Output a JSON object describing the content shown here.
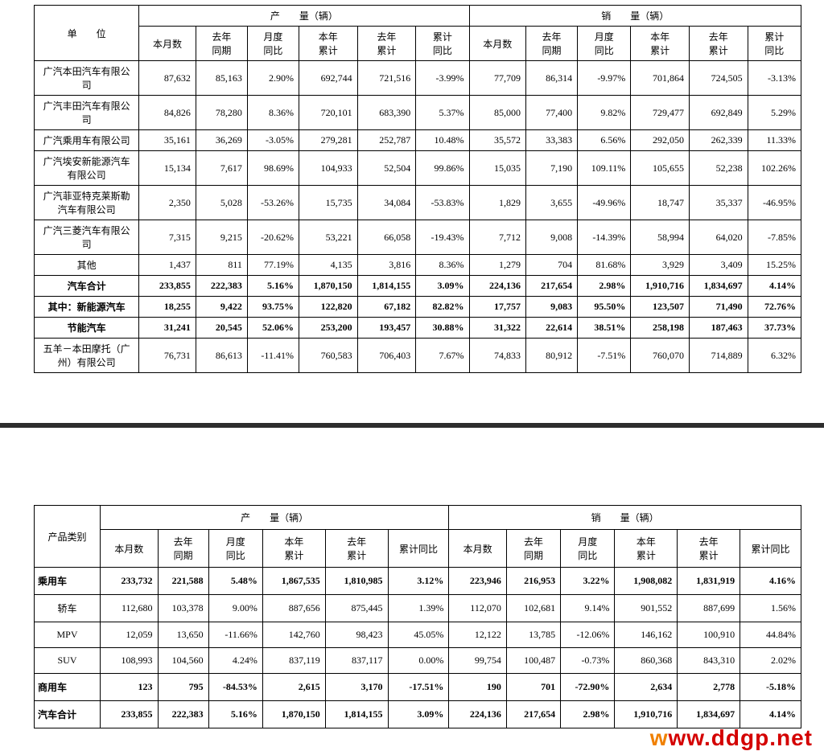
{
  "table1": {
    "group_header_unit": "单　　位",
    "group_header_prod": "产　　量（辆）",
    "group_header_sales": "销　　量（辆）",
    "cols": [
      "本月数",
      "去年\n同期",
      "月度\n同比",
      "本年\n累计",
      "去年\n累计",
      "累计\n同比",
      "本月数",
      "去年\n同期",
      "月度\n同比",
      "本年\n累计",
      "去年\n累计",
      "累计\n同比"
    ],
    "col_widths": [
      "122px",
      "66px",
      "60px",
      "60px",
      "68px",
      "68px",
      "62px",
      "66px",
      "60px",
      "62px",
      "68px",
      "68px",
      "62px"
    ],
    "rows": [
      {
        "unit": "广汽本田汽车有限公司",
        "v": [
          "87,632",
          "85,163",
          "2.90%",
          "692,744",
          "721,516",
          "-3.99%",
          "77,709",
          "86,314",
          "-9.97%",
          "701,864",
          "724,505",
          "-3.13%"
        ]
      },
      {
        "unit": "广汽丰田汽车有限公司",
        "v": [
          "84,826",
          "78,280",
          "8.36%",
          "720,101",
          "683,390",
          "5.37%",
          "85,000",
          "77,400",
          "9.82%",
          "729,477",
          "692,849",
          "5.29%"
        ]
      },
      {
        "unit": "广汽乘用车有限公司",
        "v": [
          "35,161",
          "36,269",
          "-3.05%",
          "279,281",
          "252,787",
          "10.48%",
          "35,572",
          "33,383",
          "6.56%",
          "292,050",
          "262,339",
          "11.33%"
        ]
      },
      {
        "unit": "广汽埃安新能源汽车有限公司",
        "v": [
          "15,134",
          "7,617",
          "98.69%",
          "104,933",
          "52,504",
          "99.86%",
          "15,035",
          "7,190",
          "109.11%",
          "105,655",
          "52,238",
          "102.26%"
        ]
      },
      {
        "unit": "广汽菲亚特克莱斯勒汽车有限公司",
        "v": [
          "2,350",
          "5,028",
          "-53.26%",
          "15,735",
          "34,084",
          "-53.83%",
          "1,829",
          "3,655",
          "-49.96%",
          "18,747",
          "35,337",
          "-46.95%"
        ]
      },
      {
        "unit": "广汽三菱汽车有限公司",
        "v": [
          "7,315",
          "9,215",
          "-20.62%",
          "53,221",
          "66,058",
          "-19.43%",
          "7,712",
          "9,008",
          "-14.39%",
          "58,994",
          "64,020",
          "-7.85%"
        ]
      },
      {
        "unit": "其他",
        "v": [
          "1,437",
          "811",
          "77.19%",
          "4,135",
          "3,816",
          "8.36%",
          "1,279",
          "704",
          "81.68%",
          "3,929",
          "3,409",
          "15.25%"
        ]
      },
      {
        "unit": "汽车合计",
        "bold": true,
        "v": [
          "233,855",
          "222,383",
          "5.16%",
          "1,870,150",
          "1,814,155",
          "3.09%",
          "224,136",
          "217,654",
          "2.98%",
          "1,910,716",
          "1,834,697",
          "4.14%"
        ]
      },
      {
        "unit": "其中：新能源汽车",
        "bold": true,
        "v": [
          "18,255",
          "9,422",
          "93.75%",
          "122,820",
          "67,182",
          "82.82%",
          "17,757",
          "9,083",
          "95.50%",
          "123,507",
          "71,490",
          "72.76%"
        ]
      },
      {
        "unit": "节能汽车",
        "bold": true,
        "v": [
          "31,241",
          "20,545",
          "52.06%",
          "253,200",
          "193,457",
          "30.88%",
          "31,322",
          "22,614",
          "38.51%",
          "258,198",
          "187,463",
          "37.73%"
        ]
      },
      {
        "unit": "五羊－本田摩托（广州）有限公司",
        "v": [
          "76,731",
          "86,613",
          "-11.41%",
          "760,583",
          "706,403",
          "7.67%",
          "74,833",
          "80,912",
          "-7.51%",
          "760,070",
          "714,889",
          "6.32%"
        ]
      }
    ]
  },
  "table2": {
    "group_header_unit": "产品类别",
    "group_header_prod": "产　　量（辆）",
    "group_header_sales": "销　　量（辆）",
    "cols": [
      "本月数",
      "去年\n同期",
      "月度\n同比",
      "本年\n累计",
      "去年\n累计",
      "累计同比",
      "本月数",
      "去年\n同期",
      "月度\n同比",
      "本年\n累计",
      "去年\n累计",
      "累计同比"
    ],
    "col_widths": [
      "78px",
      "68px",
      "60px",
      "64px",
      "74px",
      "74px",
      "72px",
      "68px",
      "64px",
      "64px",
      "74px",
      "74px",
      "72px"
    ],
    "rows": [
      {
        "unit": "乘用车",
        "bold": true,
        "unit_align": "left",
        "v": [
          "233,732",
          "221,588",
          "5.48%",
          "1,867,535",
          "1,810,985",
          "3.12%",
          "223,946",
          "216,953",
          "3.22%",
          "1,908,082",
          "1,831,919",
          "4.16%"
        ]
      },
      {
        "unit": "轿车",
        "v": [
          "112,680",
          "103,378",
          "9.00%",
          "887,656",
          "875,445",
          "1.39%",
          "112,070",
          "102,681",
          "9.14%",
          "901,552",
          "887,699",
          "1.56%"
        ]
      },
      {
        "unit": "MPV",
        "v": [
          "12,059",
          "13,650",
          "-11.66%",
          "142,760",
          "98,423",
          "45.05%",
          "12,122",
          "13,785",
          "-12.06%",
          "146,162",
          "100,910",
          "44.84%"
        ]
      },
      {
        "unit": "SUV",
        "v": [
          "108,993",
          "104,560",
          "4.24%",
          "837,119",
          "837,117",
          "0.00%",
          "99,754",
          "100,487",
          "-0.73%",
          "860,368",
          "843,310",
          "2.02%"
        ]
      },
      {
        "unit": "商用车",
        "bold": true,
        "unit_align": "left",
        "v": [
          "123",
          "795",
          "-84.53%",
          "2,615",
          "3,170",
          "-17.51%",
          "190",
          "701",
          "-72.90%",
          "2,634",
          "2,778",
          "-5.18%"
        ]
      },
      {
        "unit": "汽车合计",
        "bold": true,
        "unit_align": "left",
        "v": [
          "233,855",
          "222,383",
          "5.16%",
          "1,870,150",
          "1,814,155",
          "3.09%",
          "224,136",
          "217,654",
          "2.98%",
          "1,910,716",
          "1,834,697",
          "4.14%"
        ]
      }
    ]
  },
  "watermark": {
    "w": "w",
    "rest": "ww.ddgp.net"
  }
}
